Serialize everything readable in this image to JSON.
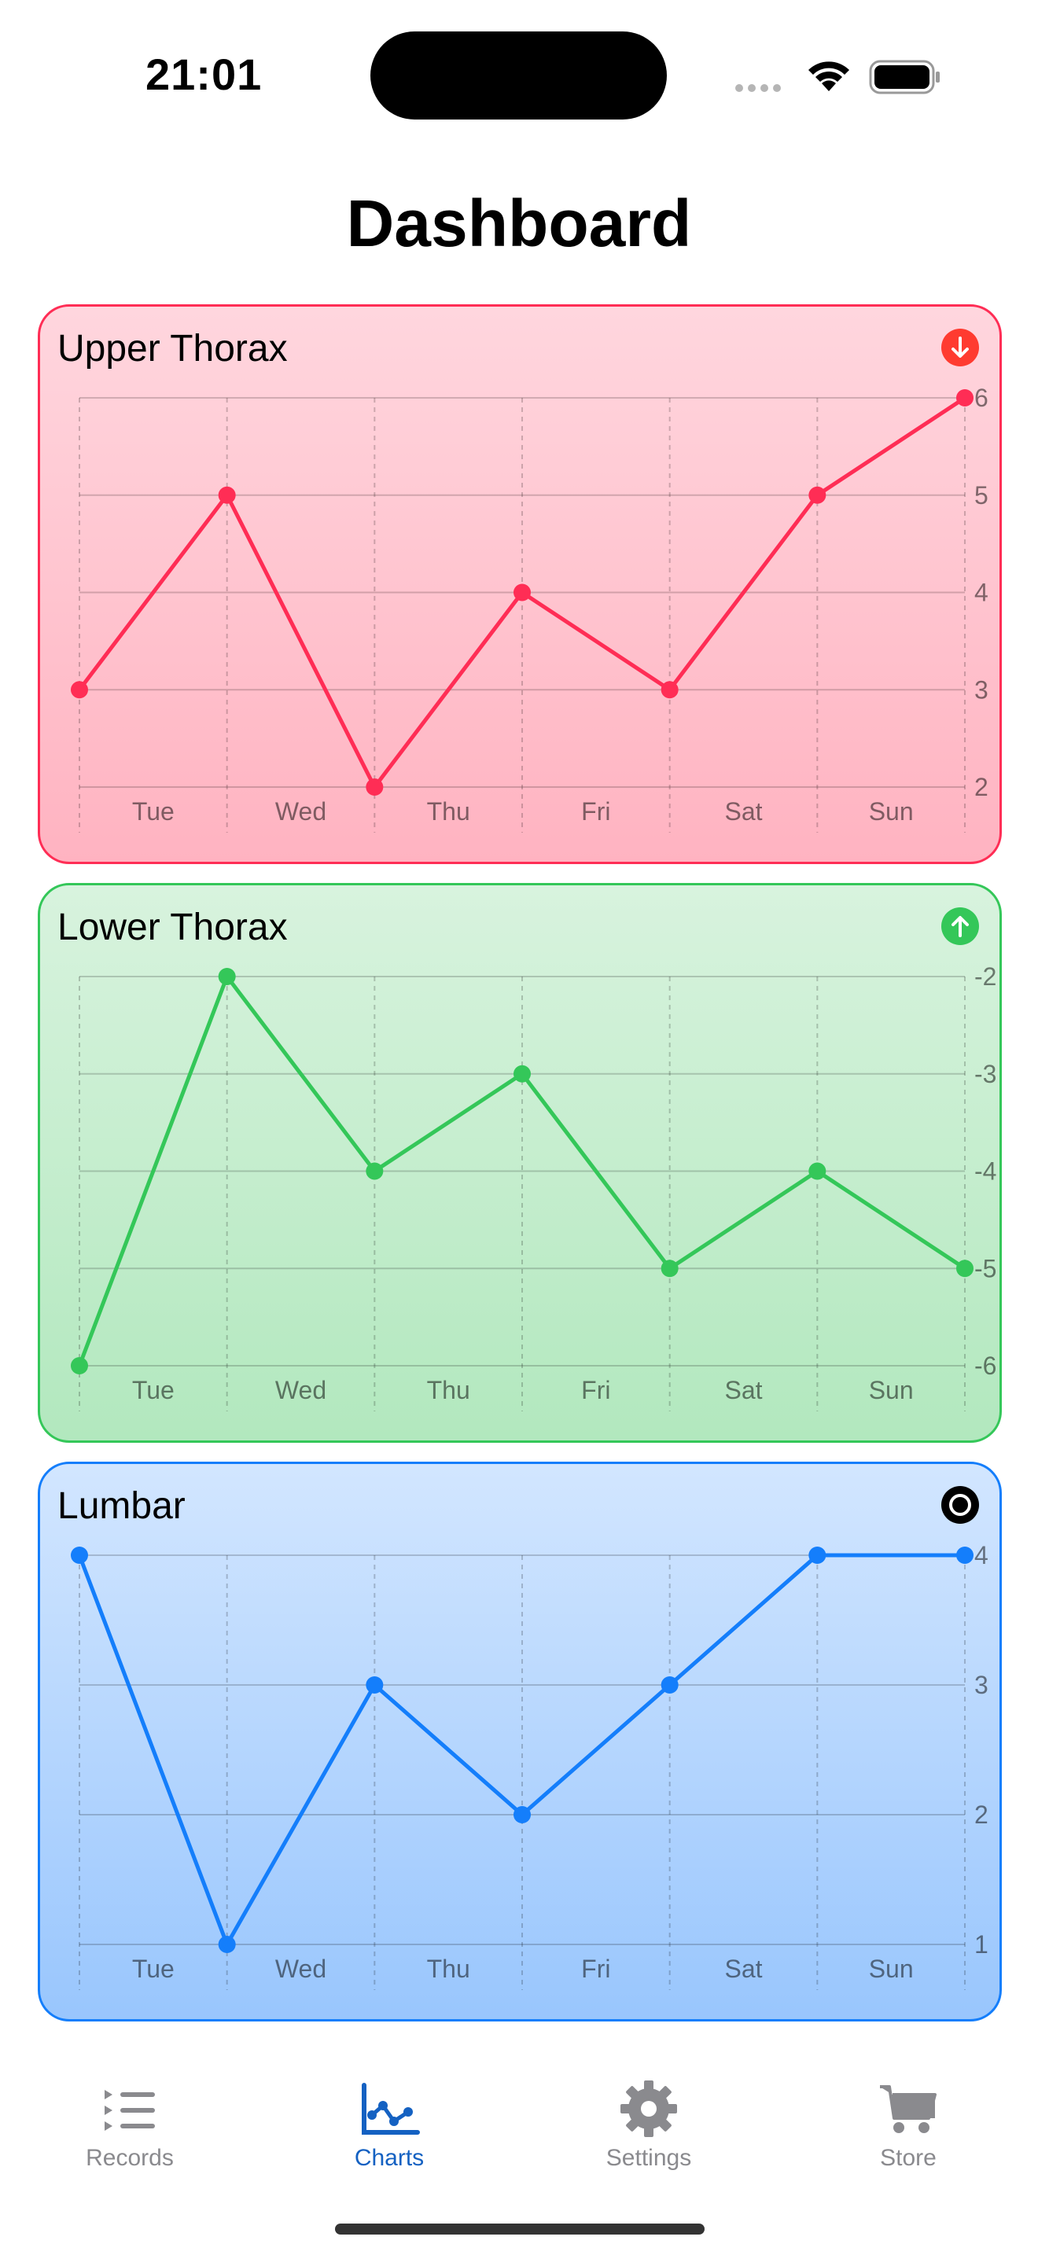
{
  "status_bar": {
    "time": "21:01"
  },
  "page": {
    "title": "Dashboard"
  },
  "charts": [
    {
      "title": "Upper Thorax",
      "badge": "arrow-down-circle-icon",
      "color": "#ff2d55"
    },
    {
      "title": "Lower Thorax",
      "badge": "arrow-up-circle-icon",
      "color": "#34c759"
    },
    {
      "title": "Lumbar",
      "badge": "target-circle-icon",
      "color": "#147efb"
    }
  ],
  "chart_data": [
    {
      "type": "line",
      "title": "Upper Thorax",
      "x_tick_labels": [
        "Tue",
        "Wed",
        "Thu",
        "Fri",
        "Sat",
        "Sun"
      ],
      "values": [
        3,
        5,
        2,
        4,
        3,
        5,
        6
      ],
      "y_ticks": [
        2,
        3,
        4,
        5,
        6
      ],
      "ylim": [
        2,
        6
      ],
      "grid": true,
      "y_axis_position": "right"
    },
    {
      "type": "line",
      "title": "Lower Thorax",
      "x_tick_labels": [
        "Tue",
        "Wed",
        "Thu",
        "Fri",
        "Sat",
        "Sun"
      ],
      "values": [
        -6,
        -2,
        -4,
        -3,
        -5,
        -4,
        -5
      ],
      "y_ticks": [
        -2,
        -3,
        -4,
        -5,
        -6
      ],
      "ylim": [
        -6,
        -2
      ],
      "grid": true,
      "y_axis_position": "right"
    },
    {
      "type": "line",
      "title": "Lumbar",
      "x_tick_labels": [
        "Tue",
        "Wed",
        "Thu",
        "Fri",
        "Sat",
        "Sun"
      ],
      "values": [
        4,
        1,
        3,
        2,
        3,
        4,
        4
      ],
      "y_ticks": [
        1,
        2,
        3,
        4
      ],
      "ylim": [
        1,
        4
      ],
      "grid": true,
      "y_axis_position": "right"
    }
  ],
  "tab_bar": {
    "items": [
      {
        "label": "Records",
        "icon": "list-icon",
        "active": false
      },
      {
        "label": "Charts",
        "icon": "chart-icon",
        "active": true
      },
      {
        "label": "Settings",
        "icon": "gear-icon",
        "active": false
      },
      {
        "label": "Store",
        "icon": "cart-icon",
        "active": false
      }
    ],
    "active_color": "#1461c2",
    "inactive_color": "#8a8a8e"
  }
}
